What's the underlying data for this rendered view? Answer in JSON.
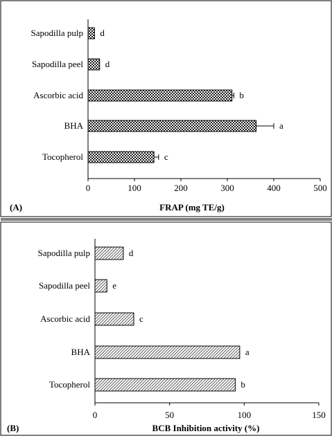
{
  "chart_data": [
    {
      "type": "bar",
      "orientation": "horizontal",
      "panel_label": "(A)",
      "xlabel": "FRAP (mg TE/g)",
      "categories": [
        "Sapodilla pulp",
        "Sapodilla peel",
        "Ascorbic acid",
        "BHA",
        "Tocopherol"
      ],
      "values": [
        14,
        25,
        310,
        362,
        142
      ],
      "errors": [
        0,
        0,
        4,
        38,
        10
      ],
      "significance": [
        "d",
        "d",
        "b",
        "a",
        "c"
      ],
      "xlim": [
        0,
        500
      ],
      "xticks": [
        "0",
        "100",
        "200",
        "300",
        "400",
        "500"
      ],
      "pattern": "checkered"
    },
    {
      "type": "bar",
      "orientation": "horizontal",
      "panel_label": "(B)",
      "xlabel": "BCB Inhibition activity (%)",
      "categories": [
        "Sapodilla pulp",
        "Sapodilla peel",
        "Ascorbic acid",
        "BHA",
        "Tocopherol"
      ],
      "values": [
        19,
        8,
        26,
        97,
        94
      ],
      "errors": [
        0,
        0,
        0,
        0,
        0
      ],
      "significance": [
        "d",
        "e",
        "c",
        "a",
        "b"
      ],
      "xlim": [
        0,
        150
      ],
      "xticks": [
        "0",
        "50",
        "100",
        "150"
      ],
      "pattern": "diagonal-hatch"
    }
  ]
}
